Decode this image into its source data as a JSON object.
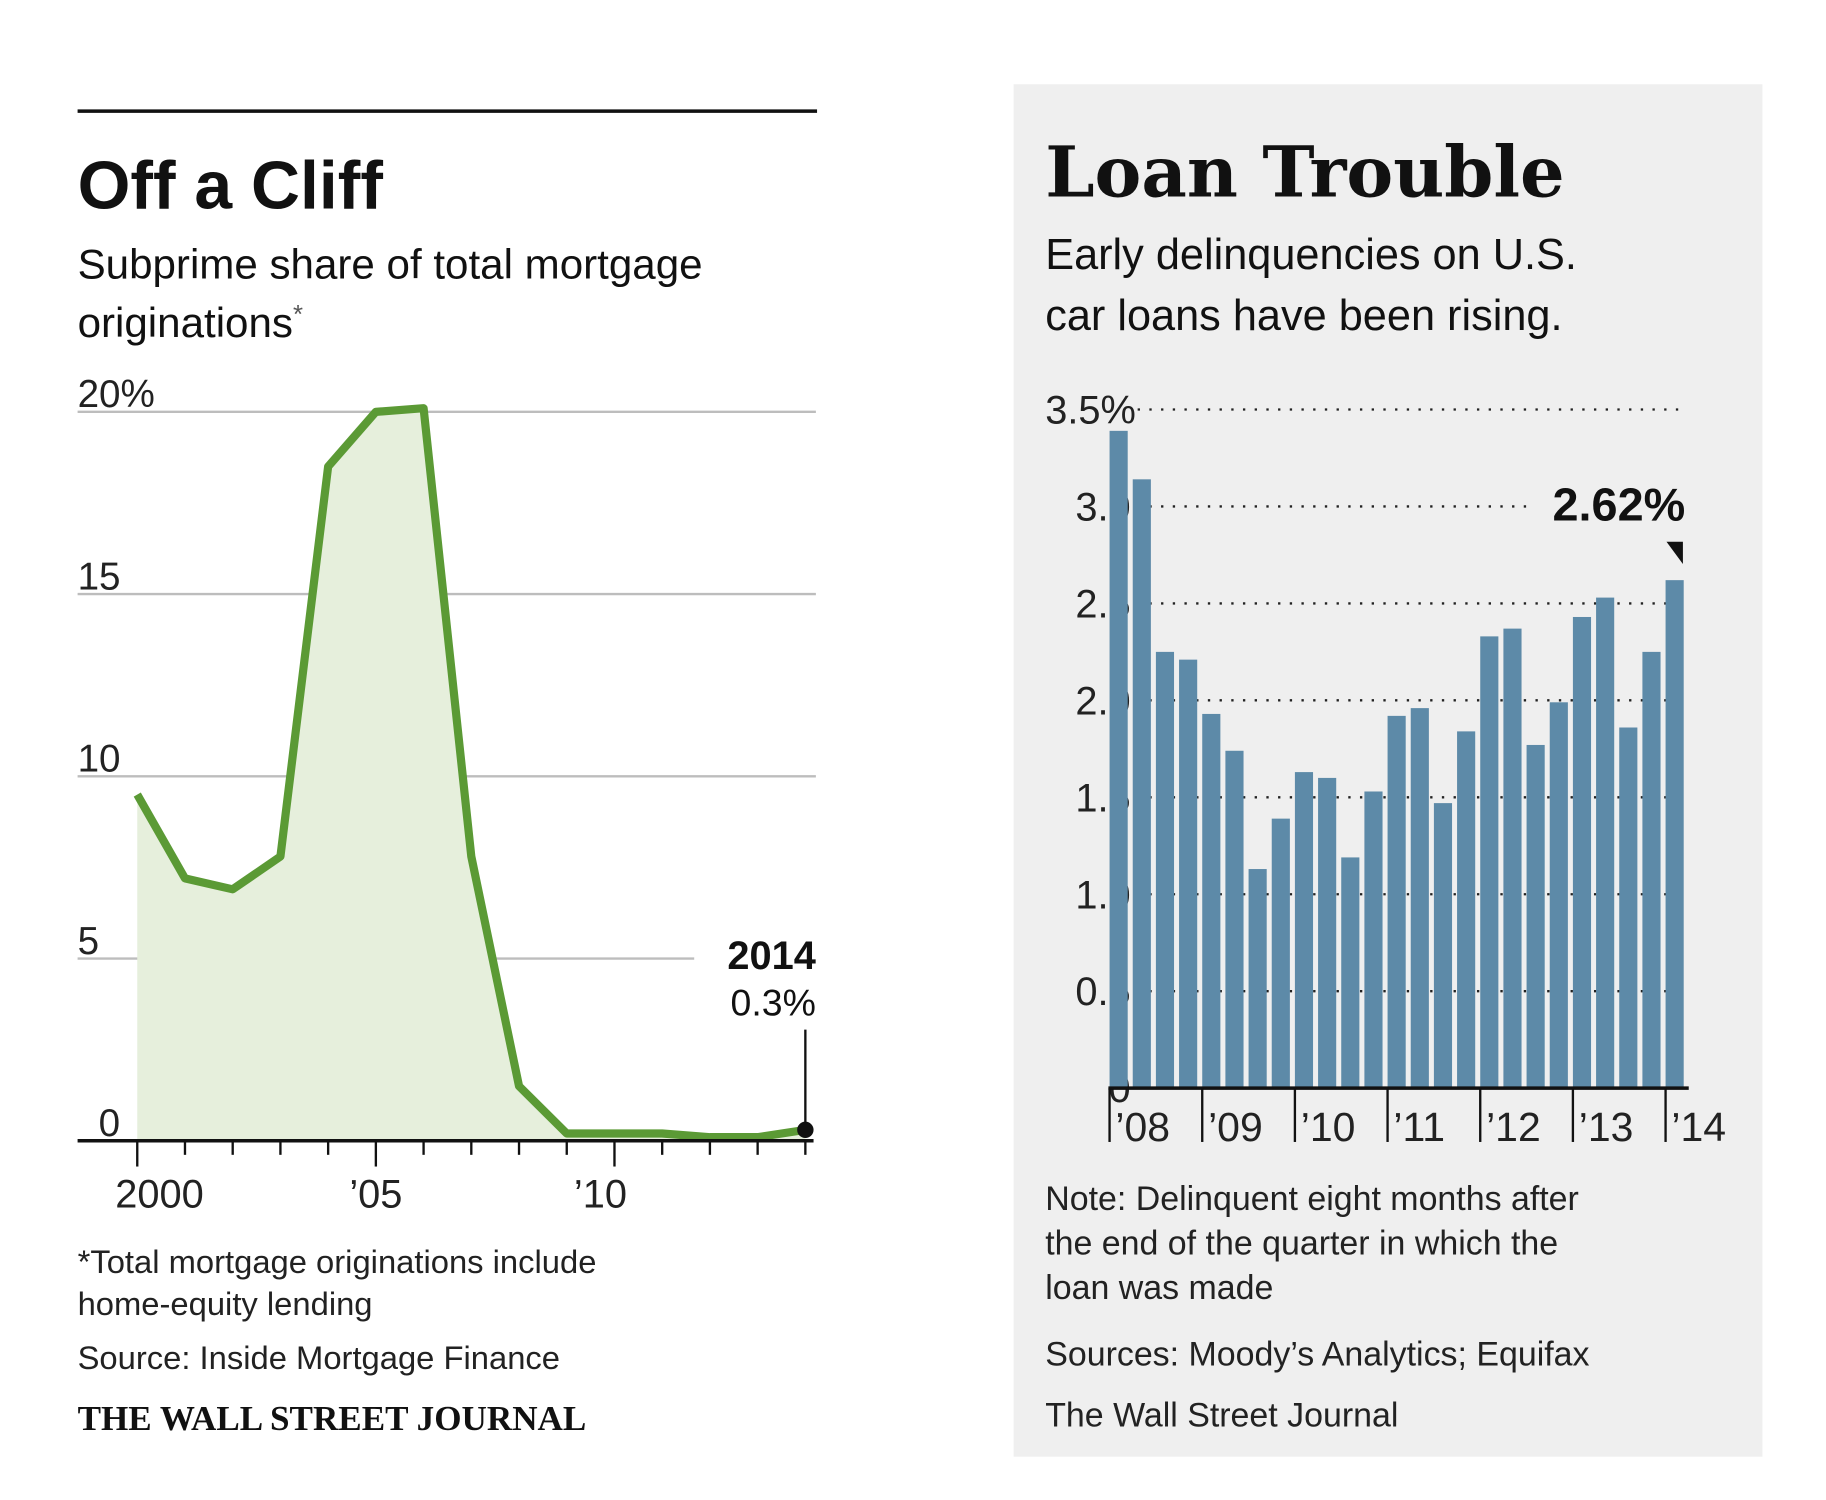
{
  "colors": {
    "line": "#5b9a35",
    "area": "#e6efdc",
    "bar": "#5d8aa8",
    "panel_bg": "#efefef",
    "grid": "#bdbdbd"
  },
  "left": {
    "title": "Off a Cliff",
    "subtitle_line1": "Subprime share of total mortgage",
    "subtitle_line2": "originations",
    "subtitle_mark": "*",
    "annotation_year": "2014",
    "annotation_value": "0.3%",
    "footnote_line1": "*Total mortgage originations include",
    "footnote_line2": "home-equity lending",
    "source": "Source: Inside Mortgage Finance",
    "credit": "THE WALL STREET JOURNAL"
  },
  "right": {
    "title": "Loan Trouble",
    "subtitle_line1": "Early delinquencies on U.S.",
    "subtitle_line2": "car loans have been rising.",
    "annotation_value": "2.62%",
    "note_line1": "Note: Delinquent eight months after",
    "note_line2": "the end of the quarter in which the",
    "note_line3": "loan was made",
    "sources": "Sources: Moody’s Analytics; Equifax",
    "credit": "The Wall Street Journal"
  },
  "chart_data": [
    {
      "type": "area",
      "title": "Off a Cliff",
      "subtitle": "Subprime share of total mortgage originations*",
      "x": [
        2000,
        2001,
        2002,
        2003,
        2004,
        2005,
        2006,
        2007,
        2008,
        2009,
        2010,
        2011,
        2012,
        2013,
        2014
      ],
      "values": [
        9.5,
        7.2,
        6.9,
        7.8,
        18.5,
        20.0,
        20.1,
        7.8,
        1.5,
        0.2,
        0.2,
        0.2,
        0.1,
        0.1,
        0.3
      ],
      "ylim": [
        0,
        20
      ],
      "yticks": [
        "0",
        "5",
        "10",
        "15",
        "20%"
      ],
      "ytick_values": [
        0,
        5,
        10,
        15,
        20
      ],
      "xticks": [
        "2000",
        "’05",
        "’10"
      ],
      "xtick_values": [
        2000,
        2005,
        2010
      ],
      "grid": true,
      "annotation": {
        "x": 2014,
        "label": "2014",
        "value": "0.3%"
      }
    },
    {
      "type": "bar",
      "title": "Loan Trouble",
      "subtitle": "Early delinquencies on U.S. car loans have been rising.",
      "categories": [
        "2008Q1",
        "2008Q2",
        "2008Q3",
        "2008Q4",
        "2009Q1",
        "2009Q2",
        "2009Q3",
        "2009Q4",
        "2010Q1",
        "2010Q2",
        "2010Q3",
        "2010Q4",
        "2011Q1",
        "2011Q2",
        "2011Q3",
        "2011Q4",
        "2012Q1",
        "2012Q2",
        "2012Q3",
        "2012Q4",
        "2013Q1",
        "2013Q2",
        "2013Q3",
        "2013Q4",
        "2014Q1"
      ],
      "values": [
        3.39,
        3.14,
        2.25,
        2.21,
        1.93,
        1.74,
        1.13,
        1.39,
        1.63,
        1.6,
        1.19,
        1.53,
        1.92,
        1.96,
        1.47,
        1.84,
        2.33,
        2.37,
        1.77,
        1.99,
        2.43,
        2.53,
        1.86,
        2.25,
        2.62
      ],
      "ylim": [
        0,
        3.5
      ],
      "yticks": [
        "0",
        "0.5",
        "1.0",
        "1.5",
        "2.0",
        "2.5",
        "3.0",
        "3.5%"
      ],
      "ytick_values": [
        0,
        0.5,
        1.0,
        1.5,
        2.0,
        2.5,
        3.0,
        3.5
      ],
      "xticks": [
        "’08",
        "’09",
        "’10",
        "’11",
        "’12",
        "’13",
        "’14"
      ],
      "grid": "dotted",
      "annotation": {
        "category": "2014Q1",
        "value": "2.62%"
      }
    }
  ]
}
